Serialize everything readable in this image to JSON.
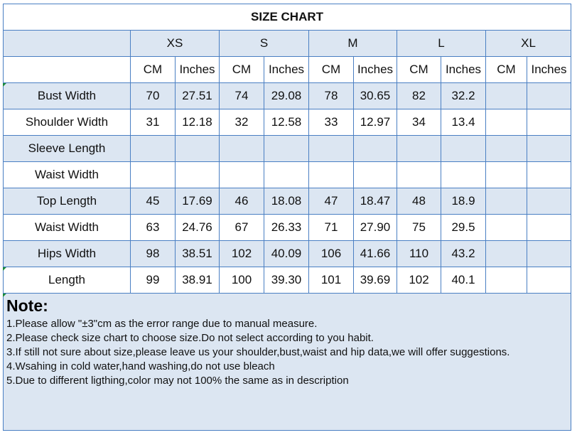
{
  "title": "SIZE CHART",
  "sizes": [
    "XS",
    "S",
    "M",
    "L",
    "XL"
  ],
  "units": [
    "CM",
    "Inches"
  ],
  "rows": [
    {
      "label": "Bust Width",
      "values": [
        "70",
        "27.51",
        "74",
        "29.08",
        "78",
        "30.65",
        "82",
        "32.2",
        "",
        ""
      ]
    },
    {
      "label": "Shoulder Width",
      "values": [
        "31",
        "12.18",
        "32",
        "12.58",
        "33",
        "12.97",
        "34",
        "13.4",
        "",
        ""
      ]
    },
    {
      "label": "Sleeve Length",
      "values": [
        "",
        "",
        "",
        "",
        "",
        "",
        "",
        "",
        "",
        ""
      ]
    },
    {
      "label": "Waist Width",
      "values": [
        "",
        "",
        "",
        "",
        "",
        "",
        "",
        "",
        "",
        ""
      ]
    },
    {
      "label": "Top Length",
      "values": [
        "45",
        "17.69",
        "46",
        "18.08",
        "47",
        "18.47",
        "48",
        "18.9",
        "",
        ""
      ]
    },
    {
      "label": "Waist Width",
      "values": [
        "63",
        "24.76",
        "67",
        "26.33",
        "71",
        "27.90",
        "75",
        "29.5",
        "",
        ""
      ]
    },
    {
      "label": "Hips Width",
      "values": [
        "98",
        "38.51",
        "102",
        "40.09",
        "106",
        "41.66",
        "110",
        "43.2",
        "",
        ""
      ]
    },
    {
      "label": "Length",
      "values": [
        "99",
        "38.91",
        "100",
        "39.30",
        "101",
        "39.69",
        "102",
        "40.1",
        "",
        ""
      ]
    }
  ],
  "notes": {
    "heading": "Note:",
    "lines": [
      "1.Please allow \"±3\"cm as the error range due to manual measure.",
      "2.Please check size chart to choose size.Do not select according to you habit.",
      "3.If still not sure about size,please leave us your shoulder,bust,waist and hip data,we will offer suggestions.",
      "4.Wsahing in cold water,hand washing,do not use bleach",
      "5.Due to different ligthing,color may not 100% the same as in description"
    ]
  },
  "colors": {
    "band": "#dce6f2",
    "border": "#4a7fc3",
    "marker": "#1a8a3a"
  }
}
